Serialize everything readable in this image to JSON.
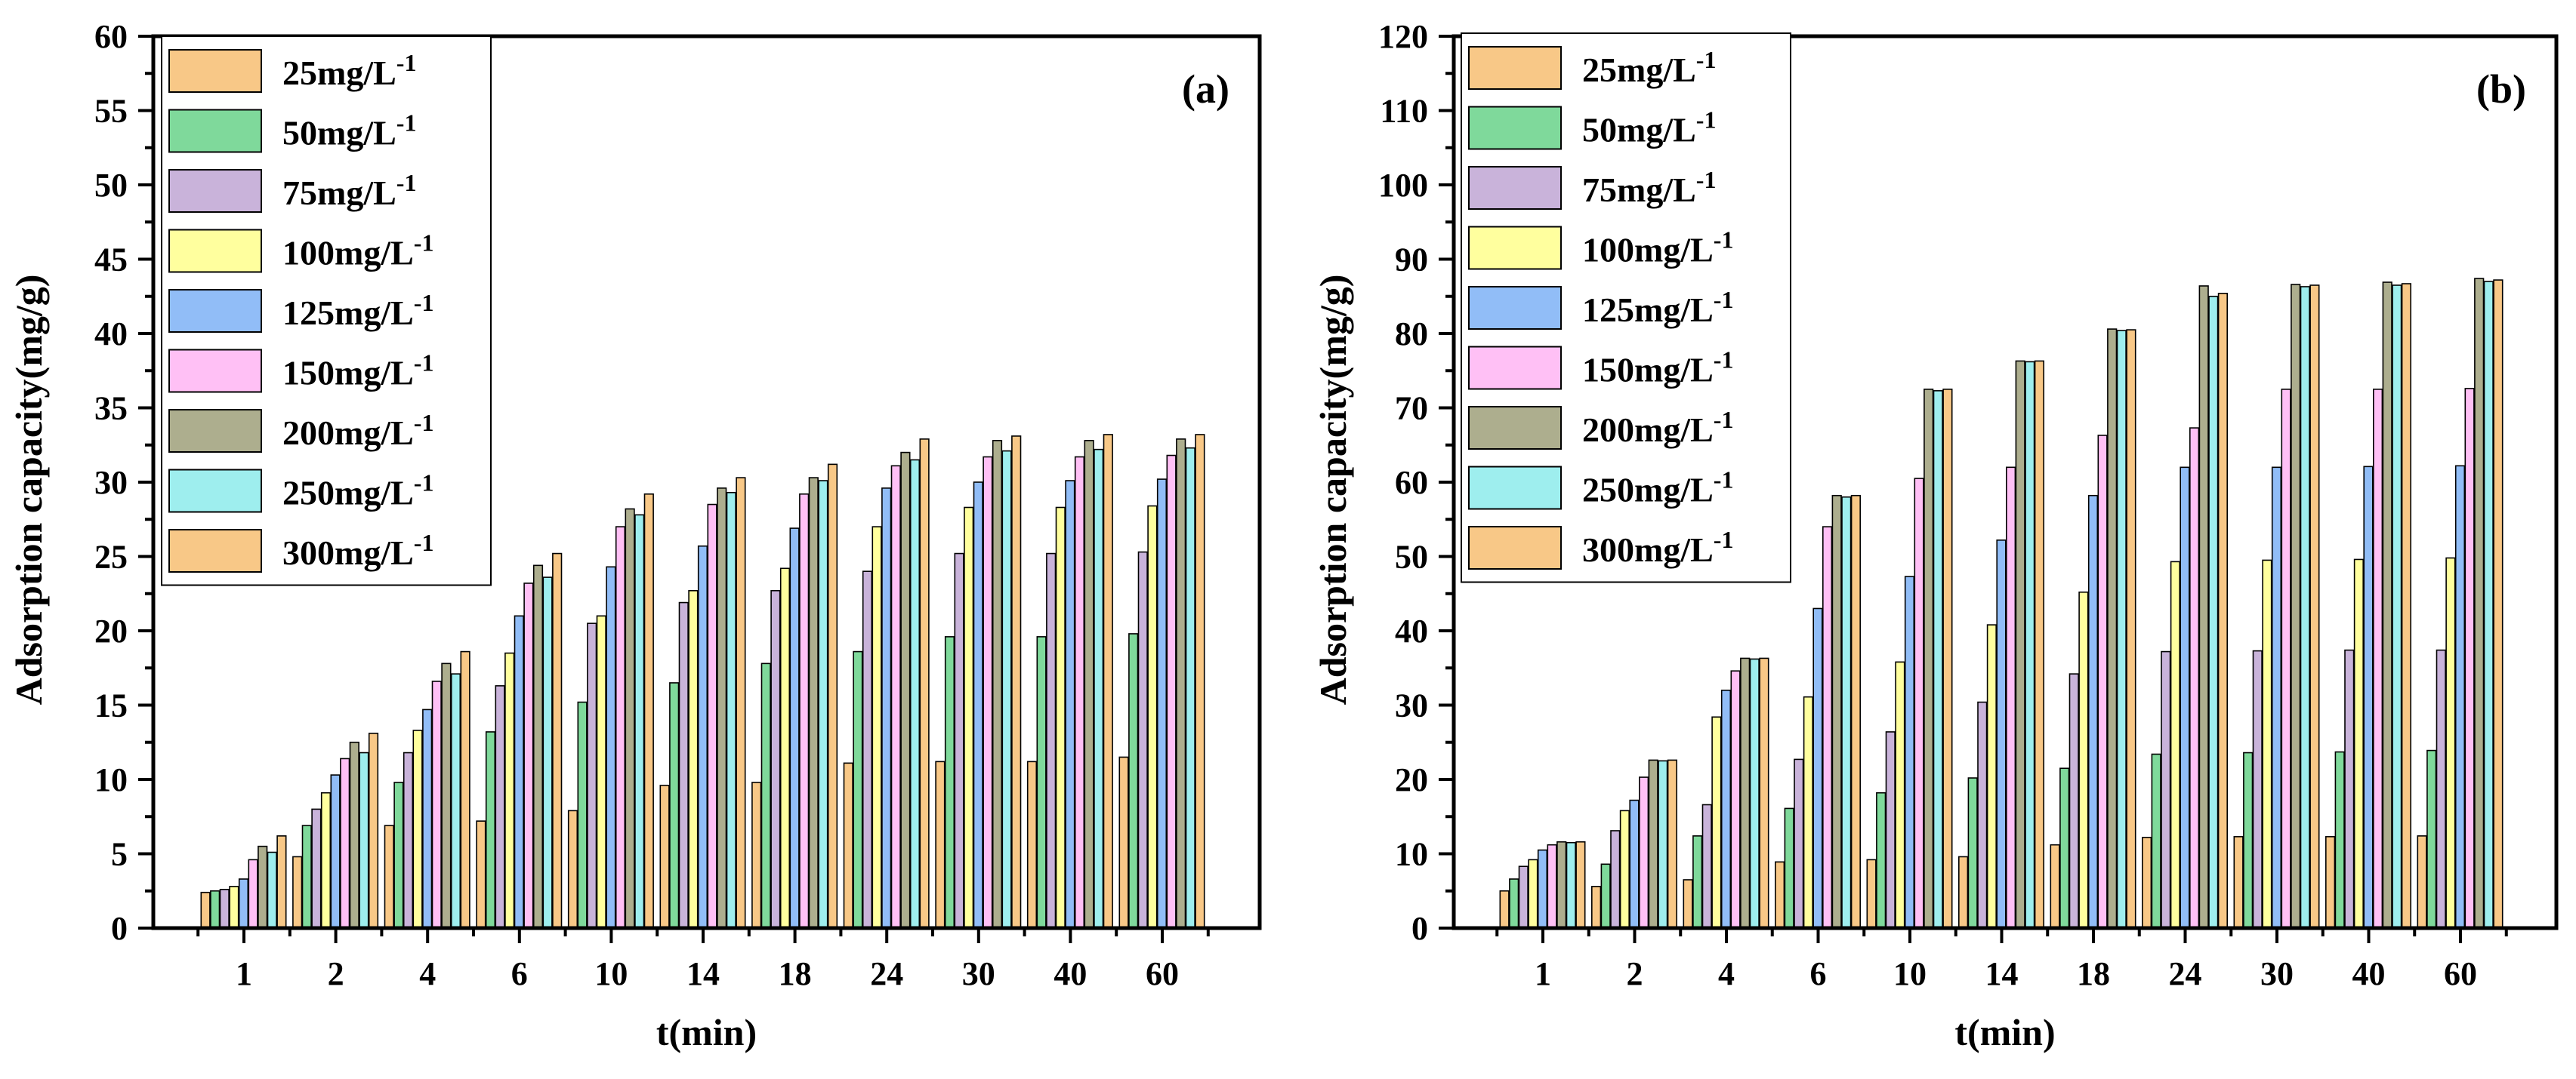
{
  "chart_data": [
    {
      "type": "bar",
      "panel_label": "(a)",
      "xlabel": "t(min)",
      "ylabel": "Adsorption capacity(mg/g)",
      "ylim": [
        0,
        60
      ],
      "yticks": [
        0,
        5,
        10,
        15,
        20,
        25,
        30,
        35,
        40,
        45,
        50,
        55,
        60
      ],
      "legend_position": "top-left",
      "categories": [
        "1",
        "2",
        "4",
        "6",
        "10",
        "14",
        "18",
        "24",
        "30",
        "40",
        "60"
      ],
      "series": [
        {
          "name": "25mg/L",
          "sup": "-1",
          "color": "#F8C887",
          "values": [
            2.4,
            4.8,
            6.9,
            7.2,
            7.9,
            9.6,
            9.8,
            11.1,
            11.2,
            11.2,
            11.5
          ]
        },
        {
          "name": "50mg/L",
          "sup": "-1",
          "color": "#7FD99B",
          "values": [
            2.5,
            6.9,
            9.8,
            13.2,
            15.2,
            16.5,
            17.8,
            18.6,
            19.6,
            19.6,
            19.8
          ]
        },
        {
          "name": "75mg/L",
          "sup": "-1",
          "color": "#C9B3DA",
          "values": [
            2.6,
            8.0,
            11.8,
            16.3,
            20.5,
            21.9,
            22.7,
            24.0,
            25.2,
            25.2,
            25.3
          ]
        },
        {
          "name": "100mg/L",
          "sup": "-1",
          "color": "#FFFF9E",
          "values": [
            2.8,
            9.1,
            13.3,
            18.5,
            21.0,
            22.7,
            24.2,
            27.0,
            28.3,
            28.3,
            28.4
          ]
        },
        {
          "name": "125mg/L",
          "sup": "-1",
          "color": "#91BDF7",
          "values": [
            3.3,
            10.3,
            14.7,
            21.0,
            24.3,
            25.7,
            26.9,
            29.6,
            30.0,
            30.1,
            30.2
          ]
        },
        {
          "name": "150mg/L",
          "sup": "-1",
          "color": "#FFC0F5",
          "values": [
            4.6,
            11.4,
            16.6,
            23.2,
            27.0,
            28.5,
            29.2,
            31.1,
            31.7,
            31.7,
            31.8
          ]
        },
        {
          "name": "200mg/L",
          "sup": "-1",
          "color": "#ADAE8E",
          "values": [
            5.5,
            12.5,
            17.8,
            24.4,
            28.2,
            29.6,
            30.3,
            32.0,
            32.8,
            32.8,
            32.9
          ]
        },
        {
          "name": "250mg/L",
          "sup": "-1",
          "color": "#9EEEEE",
          "values": [
            5.1,
            11.8,
            17.1,
            23.6,
            27.8,
            29.3,
            30.1,
            31.5,
            32.1,
            32.2,
            32.3
          ]
        },
        {
          "name": "300mg/L",
          "sup": "-1",
          "color": "#F8C887",
          "values": [
            6.2,
            13.1,
            18.6,
            25.2,
            29.2,
            30.3,
            31.2,
            32.9,
            33.1,
            33.2,
            33.2
          ]
        }
      ]
    },
    {
      "type": "bar",
      "panel_label": "(b)",
      "xlabel": "t(min)",
      "ylabel": "Adsorption capacity(mg/g)",
      "ylim": [
        0,
        120
      ],
      "yticks": [
        0,
        10,
        20,
        30,
        40,
        50,
        60,
        70,
        80,
        90,
        100,
        110,
        120
      ],
      "legend_position": "top-left",
      "categories": [
        "1",
        "2",
        "4",
        "6",
        "10",
        "14",
        "18",
        "24",
        "30",
        "40",
        "60"
      ],
      "series": [
        {
          "name": "25mg/L",
          "sup": "-1",
          "color": "#F8C887",
          "values": [
            5.0,
            5.6,
            6.5,
            8.9,
            9.2,
            9.6,
            11.2,
            12.2,
            12.3,
            12.3,
            12.4
          ]
        },
        {
          "name": "50mg/L",
          "sup": "-1",
          "color": "#7FD99B",
          "values": [
            6.6,
            8.6,
            12.4,
            16.1,
            18.2,
            20.2,
            21.5,
            23.4,
            23.6,
            23.7,
            23.9
          ]
        },
        {
          "name": "75mg/L",
          "sup": "-1",
          "color": "#C9B3DA",
          "values": [
            8.3,
            13.1,
            16.6,
            22.7,
            26.4,
            30.4,
            34.2,
            37.2,
            37.3,
            37.4,
            37.4
          ]
        },
        {
          "name": "100mg/L",
          "sup": "-1",
          "color": "#FFFF9E",
          "values": [
            9.2,
            15.8,
            28.4,
            31.1,
            35.8,
            40.8,
            45.2,
            49.3,
            49.5,
            49.6,
            49.8
          ]
        },
        {
          "name": "125mg/L",
          "sup": "-1",
          "color": "#91BDF7",
          "values": [
            10.5,
            17.2,
            32.0,
            43.0,
            47.3,
            52.2,
            58.2,
            62.0,
            62.0,
            62.1,
            62.2
          ]
        },
        {
          "name": "150mg/L",
          "sup": "-1",
          "color": "#FFC0F5",
          "values": [
            11.2,
            20.3,
            34.6,
            54.0,
            60.5,
            62.0,
            66.3,
            67.3,
            72.5,
            72.5,
            72.6
          ]
        },
        {
          "name": "200mg/L",
          "sup": "-1",
          "color": "#ADAE8E",
          "values": [
            11.6,
            22.6,
            36.3,
            58.2,
            72.5,
            76.3,
            80.6,
            86.4,
            86.6,
            86.9,
            87.4
          ]
        },
        {
          "name": "250mg/L",
          "sup": "-1",
          "color": "#9EEEEE",
          "values": [
            11.5,
            22.5,
            36.2,
            58.0,
            72.3,
            76.2,
            80.4,
            85.0,
            86.3,
            86.5,
            87.0
          ]
        },
        {
          "name": "300mg/L",
          "sup": "-1",
          "color": "#F8C887",
          "values": [
            11.6,
            22.6,
            36.3,
            58.2,
            72.5,
            76.3,
            80.5,
            85.4,
            86.5,
            86.7,
            87.2
          ]
        }
      ]
    }
  ]
}
